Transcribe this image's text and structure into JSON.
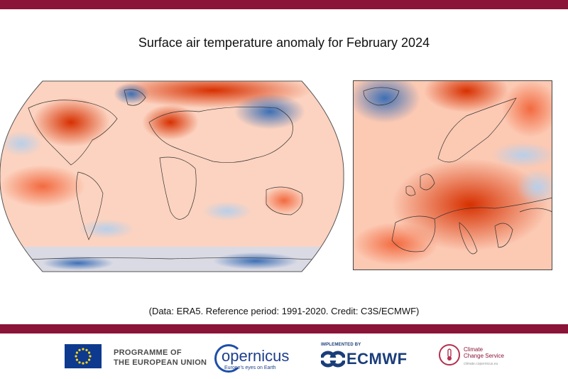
{
  "map": {
    "title": "Surface air temperature anomaly for February 2024",
    "credit": "(Data: ERA5. Reference period: 1991-2020. Credit: C3S/ECMWF)",
    "panels": [
      "world-robinson",
      "europe-regional"
    ],
    "colors": {
      "warm_strong": "#d73000",
      "warm_medium": "#f26a40",
      "warm_light": "#fbb59a",
      "warm_pale": "#fde0d0",
      "cool_light": "#c6d8ee",
      "cool_strong": "#3d6fb5",
      "coastline": "#333333",
      "band": "#8a1538"
    }
  },
  "footer": {
    "eu": {
      "line1": "PROGRAMME OF",
      "line2": "THE EUROPEAN UNION"
    },
    "copernicus": {
      "name": "opernicus",
      "tagline": "Europe's eyes on Earth"
    },
    "implemented_by": "IMPLEMENTED BY",
    "ecmwf": "ECMWF",
    "c3s": {
      "line1": "Climate",
      "line2": "Change Service",
      "url": "climate.copernicus.eu"
    }
  }
}
